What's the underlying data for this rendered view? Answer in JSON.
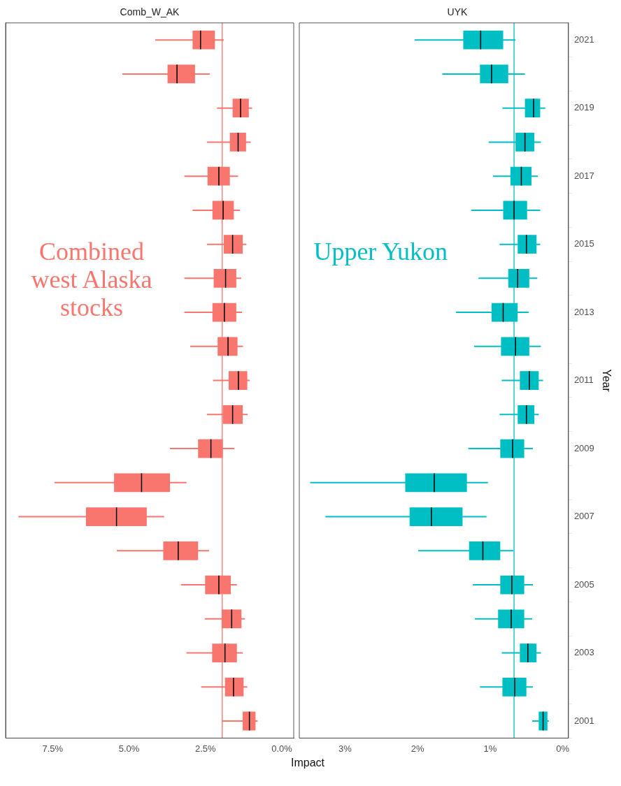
{
  "chart_data": [
    {
      "type": "box",
      "title": "Comb_W_AK",
      "xlabel": "Impact",
      "orientation": "horizontal",
      "tick_labels": "x",
      "grid": false,
      "categories": [
        "2021",
        null,
        "2019",
        null,
        "2017",
        null,
        "2015",
        null,
        "2013",
        null,
        "2011",
        null,
        "2009",
        null,
        "2007",
        null,
        "2005",
        null,
        "2003",
        null,
        "2001"
      ],
      "series": [
        {
          "color": "#f8766d",
          "boxes": [
            {
              "low": 1.9,
              "q1": 2.19,
              "median": 2.66,
              "q3": 2.92,
              "high": 4.14
            },
            {
              "low": 2.36,
              "q1": 2.84,
              "median": 3.43,
              "q3": 3.74,
              "high": 5.22
            },
            {
              "low": 0.97,
              "q1": 1.08,
              "median": 1.35,
              "q3": 1.61,
              "high": 2.12
            },
            {
              "low": 1.02,
              "q1": 1.17,
              "median": 1.43,
              "q3": 1.7,
              "high": 2.45
            },
            {
              "low": 1.43,
              "q1": 1.7,
              "median": 2.06,
              "q3": 2.43,
              "high": 3.19
            },
            {
              "low": 1.37,
              "q1": 1.57,
              "median": 1.92,
              "q3": 2.27,
              "high": 2.92
            },
            {
              "low": 1.16,
              "q1": 1.28,
              "median": 1.61,
              "q3": 1.9,
              "high": 2.45
            },
            {
              "low": 1.33,
              "q1": 1.49,
              "median": 1.84,
              "q3": 2.23,
              "high": 3.19
            },
            {
              "low": 1.3,
              "q1": 1.49,
              "median": 1.88,
              "q3": 2.27,
              "high": 3.19
            },
            {
              "low": 1.27,
              "q1": 1.45,
              "median": 1.76,
              "q3": 2.1,
              "high": 3.0
            },
            {
              "low": 1.05,
              "q1": 1.13,
              "median": 1.42,
              "q3": 1.74,
              "high": 2.25
            },
            {
              "low": 1.12,
              "q1": 1.28,
              "median": 1.61,
              "q3": 1.93,
              "high": 2.45
            },
            {
              "low": 1.55,
              "q1": 1.93,
              "median": 2.32,
              "q3": 2.74,
              "high": 3.66
            },
            {
              "low": 3.12,
              "q1": 3.66,
              "median": 4.59,
              "q3": 5.49,
              "high": 7.44
            },
            {
              "low": 3.85,
              "q1": 4.42,
              "median": 5.41,
              "q3": 6.41,
              "high": 8.62
            },
            {
              "low": 2.38,
              "q1": 2.74,
              "median": 3.39,
              "q3": 3.88,
              "high": 5.4
            },
            {
              "low": 1.47,
              "q1": 1.67,
              "median": 2.06,
              "q3": 2.51,
              "high": 3.3
            },
            {
              "low": 1.21,
              "q1": 1.32,
              "median": 1.64,
              "q3": 1.97,
              "high": 2.52
            },
            {
              "low": 1.28,
              "q1": 1.47,
              "median": 1.86,
              "q3": 2.28,
              "high": 3.12
            },
            {
              "low": 1.13,
              "q1": 1.25,
              "median": 1.58,
              "q3": 1.86,
              "high": 2.64
            },
            {
              "low": 0.79,
              "q1": 0.86,
              "median": 1.06,
              "q3": 1.28,
              "high": 1.96
            }
          ]
        }
      ],
      "xlim": [
        9.04,
        -0.39
      ],
      "xticks": [
        {
          "value": 7.5,
          "label": "7.5%"
        },
        {
          "value": 5,
          "label": "5.0%"
        },
        {
          "value": 2.5,
          "label": "2.5%"
        },
        {
          "value": 0,
          "label": "0.0%"
        }
      ],
      "ref_lines": [
        {
          "axis": "x",
          "value": 1.95,
          "color": "#f8766d"
        }
      ],
      "annotations": [
        "Combined west Alaska stocks"
      ]
    },
    {
      "type": "box",
      "title": "UYK",
      "ylabel": "Year",
      "orientation": "horizontal",
      "grid": false,
      "categories": [
        "2021",
        null,
        "2019",
        null,
        "2017",
        null,
        "2015",
        null,
        "2013",
        null,
        "2011",
        null,
        "2009",
        null,
        "2007",
        null,
        "2005",
        null,
        "2003",
        null,
        "2001"
      ],
      "series": [
        {
          "color": "#00bfc4",
          "boxes": [
            {
              "low": 0.65,
              "q1": 0.82,
              "median": 1.13,
              "q3": 1.37,
              "high": 2.04
            },
            {
              "low": 0.52,
              "q1": 0.75,
              "median": 0.98,
              "q3": 1.14,
              "high": 1.66
            },
            {
              "low": 0.24,
              "q1": 0.31,
              "median": 0.4,
              "q3": 0.52,
              "high": 0.83
            },
            {
              "low": 0.3,
              "q1": 0.39,
              "median": 0.52,
              "q3": 0.65,
              "high": 1.02
            },
            {
              "low": 0.34,
              "q1": 0.43,
              "median": 0.57,
              "q3": 0.72,
              "high": 0.96
            },
            {
              "low": 0.31,
              "q1": 0.49,
              "median": 0.67,
              "q3": 0.82,
              "high": 1.26
            },
            {
              "low": 0.31,
              "q1": 0.36,
              "median": 0.5,
              "q3": 0.62,
              "high": 0.87
            },
            {
              "low": 0.35,
              "q1": 0.46,
              "median": 0.62,
              "q3": 0.75,
              "high": 1.16
            },
            {
              "low": 0.47,
              "q1": 0.62,
              "median": 0.82,
              "q3": 0.98,
              "high": 1.47
            },
            {
              "low": 0.3,
              "q1": 0.46,
              "median": 0.65,
              "q3": 0.85,
              "high": 1.22
            },
            {
              "low": 0.27,
              "q1": 0.33,
              "median": 0.46,
              "q3": 0.59,
              "high": 0.84
            },
            {
              "low": 0.33,
              "q1": 0.39,
              "median": 0.5,
              "q3": 0.62,
              "high": 0.87
            },
            {
              "low": 0.41,
              "q1": 0.53,
              "median": 0.69,
              "q3": 0.86,
              "high": 1.3
            },
            {
              "low": 1.03,
              "q1": 1.32,
              "median": 1.77,
              "q3": 2.17,
              "high": 3.48
            },
            {
              "low": 1.05,
              "q1": 1.38,
              "median": 1.81,
              "q3": 2.11,
              "high": 3.27
            },
            {
              "low": 0.68,
              "q1": 0.86,
              "median": 1.1,
              "q3": 1.29,
              "high": 1.99
            },
            {
              "low": 0.41,
              "q1": 0.53,
              "median": 0.7,
              "q3": 0.86,
              "high": 1.24
            },
            {
              "low": 0.42,
              "q1": 0.53,
              "median": 0.71,
              "q3": 0.89,
              "high": 1.21
            },
            {
              "low": 0.3,
              "q1": 0.36,
              "median": 0.48,
              "q3": 0.59,
              "high": 0.84
            },
            {
              "low": 0.41,
              "q1": 0.5,
              "median": 0.66,
              "q3": 0.83,
              "high": 1.14
            },
            {
              "low": 0.19,
              "q1": 0.21,
              "median": 0.27,
              "q3": 0.33,
              "high": 0.42
            }
          ]
        }
      ],
      "xlim": [
        3.63,
        -0.08
      ],
      "xticks": [
        {
          "value": 3,
          "label": "3%"
        },
        {
          "value": 2,
          "label": "2%"
        },
        {
          "value": 1,
          "label": "1%"
        },
        {
          "value": 0,
          "label": "0%"
        }
      ],
      "ref_lines": [
        {
          "axis": "x",
          "value": 0.67,
          "color": "#00bfc4"
        }
      ],
      "annotations": [
        "Upper Yukon"
      ]
    }
  ]
}
